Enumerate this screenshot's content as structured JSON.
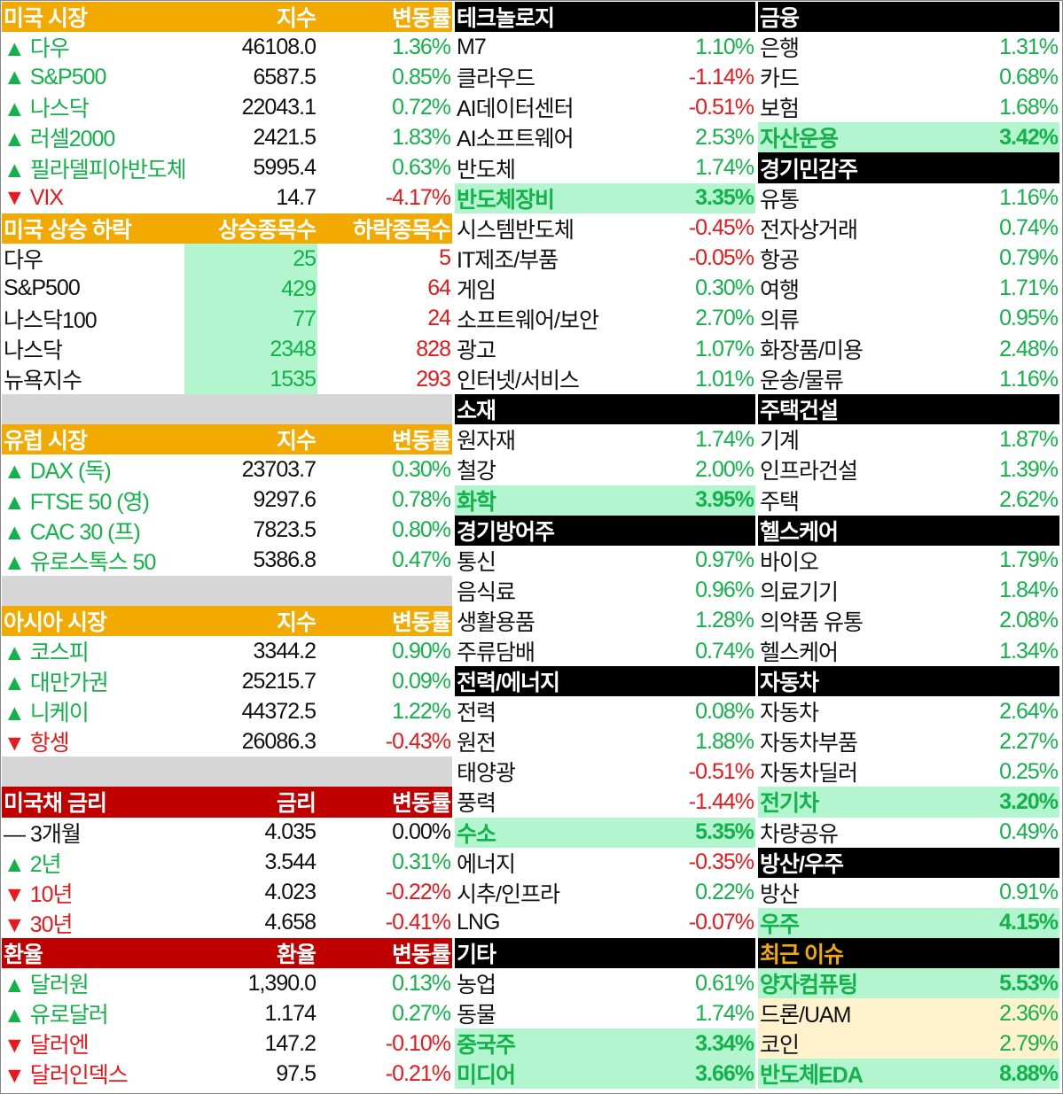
{
  "left": {
    "us_market": {
      "header": [
        "미국 시장",
        "지수",
        "변동률"
      ],
      "rows": [
        {
          "dir": "up",
          "name": "다우",
          "value": "46108.0",
          "chg": "1.36%"
        },
        {
          "dir": "up",
          "name": "S&P500",
          "value": "6587.5",
          "chg": "0.85%"
        },
        {
          "dir": "up",
          "name": "나스닥",
          "value": "22043.1",
          "chg": "0.72%"
        },
        {
          "dir": "up",
          "name": "러셀2000",
          "value": "2421.5",
          "chg": "1.83%"
        },
        {
          "dir": "up",
          "name": "필라델피아반도체",
          "value": "5995.4",
          "chg": "0.63%"
        },
        {
          "dir": "down",
          "name": "VIX",
          "value": "14.7",
          "chg": "-4.17%"
        }
      ]
    },
    "us_breadth": {
      "header": [
        "미국 상승 하락",
        "상승종목수",
        "하락종목수"
      ],
      "rows": [
        {
          "name": "다우",
          "up": "25",
          "down": "5"
        },
        {
          "name": "S&P500",
          "up": "429",
          "down": "64"
        },
        {
          "name": "나스닥100",
          "up": "77",
          "down": "24"
        },
        {
          "name": "나스닥",
          "up": "2348",
          "down": "828"
        },
        {
          "name": "뉴욕지수",
          "up": "1535",
          "down": "293"
        }
      ]
    },
    "europe": {
      "header": [
        "유럽 시장",
        "지수",
        "변동률"
      ],
      "rows": [
        {
          "dir": "up",
          "name": "DAX (독)",
          "value": "23703.7",
          "chg": "0.30%"
        },
        {
          "dir": "up",
          "name": "FTSE 50 (영)",
          "value": "9297.6",
          "chg": "0.78%"
        },
        {
          "dir": "up",
          "name": "CAC 30 (프)",
          "value": "7823.5",
          "chg": "0.80%"
        },
        {
          "dir": "up",
          "name": "유로스톡스 50",
          "value": "5386.8",
          "chg": "0.47%"
        }
      ]
    },
    "asia": {
      "header": [
        "아시아 시장",
        "지수",
        "변동률"
      ],
      "rows": [
        {
          "dir": "up",
          "name": "코스피",
          "value": "3344.2",
          "chg": "0.90%"
        },
        {
          "dir": "up",
          "name": "대만가권",
          "value": "25215.7",
          "chg": "0.09%"
        },
        {
          "dir": "up",
          "name": "니케이",
          "value": "44372.5",
          "chg": "1.22%"
        },
        {
          "dir": "down",
          "name": "항셍",
          "value": "26086.3",
          "chg": "-0.43%"
        }
      ]
    },
    "treasury": {
      "header": [
        "미국채 금리",
        "금리",
        "변동률"
      ],
      "rows": [
        {
          "dir": "flat",
          "name": "3개월",
          "value": "4.035",
          "chg": "0.00%"
        },
        {
          "dir": "up",
          "name": "2년",
          "value": "3.544",
          "chg": "0.31%"
        },
        {
          "dir": "down",
          "name": "10년",
          "value": "4.023",
          "chg": "-0.22%"
        },
        {
          "dir": "down",
          "name": "30년",
          "value": "4.658",
          "chg": "-0.41%"
        }
      ]
    },
    "fx": {
      "header": [
        "환율",
        "환율",
        "변동률"
      ],
      "rows": [
        {
          "dir": "up",
          "name": "달러원",
          "value": "1,390.0",
          "chg": "0.13%"
        },
        {
          "dir": "up",
          "name": "유로달러",
          "value": "1.174",
          "chg": "0.27%"
        },
        {
          "dir": "down",
          "name": "달러엔",
          "value": "147.2",
          "chg": "-0.10%"
        },
        {
          "dir": "down",
          "name": "달러인덱스",
          "value": "97.5",
          "chg": "-0.21%"
        }
      ]
    }
  },
  "middle": [
    {
      "header": "테크놀로지",
      "rows": [
        {
          "name": "M7",
          "chg": "1.10%",
          "dir": "up"
        },
        {
          "name": "클라우드",
          "chg": "-1.14%",
          "dir": "down"
        },
        {
          "name": "AI데이터센터",
          "chg": "-0.51%",
          "dir": "down"
        },
        {
          "name": "AI소프트웨어",
          "chg": "2.53%",
          "dir": "up"
        },
        {
          "name": "반도체",
          "chg": "1.74%",
          "dir": "up"
        },
        {
          "name": "반도체장비",
          "chg": "3.35%",
          "dir": "up",
          "hl": "green"
        },
        {
          "name": "시스템반도체",
          "chg": "-0.45%",
          "dir": "down"
        },
        {
          "name": "IT제조/부품",
          "chg": "-0.05%",
          "dir": "down"
        },
        {
          "name": "게임",
          "chg": "0.30%",
          "dir": "up"
        },
        {
          "name": "소프트웨어/보안",
          "chg": "2.70%",
          "dir": "up"
        },
        {
          "name": "광고",
          "chg": "1.07%",
          "dir": "up"
        },
        {
          "name": "인터넷/서비스",
          "chg": "1.01%",
          "dir": "up"
        }
      ]
    },
    {
      "header": "소재",
      "rows": [
        {
          "name": "원자재",
          "chg": "1.74%",
          "dir": "up"
        },
        {
          "name": "철강",
          "chg": "2.00%",
          "dir": "up"
        },
        {
          "name": "화학",
          "chg": "3.95%",
          "dir": "up",
          "hl": "green"
        }
      ]
    },
    {
      "header": "경기방어주",
      "rows": [
        {
          "name": "통신",
          "chg": "0.97%",
          "dir": "up"
        },
        {
          "name": "음식료",
          "chg": "0.96%",
          "dir": "up"
        },
        {
          "name": "생활용품",
          "chg": "1.28%",
          "dir": "up"
        },
        {
          "name": "주류담배",
          "chg": "0.74%",
          "dir": "up"
        }
      ]
    },
    {
      "header": "전력/에너지",
      "rows": [
        {
          "name": "전력",
          "chg": "0.08%",
          "dir": "up"
        },
        {
          "name": "원전",
          "chg": "1.88%",
          "dir": "up"
        },
        {
          "name": "태양광",
          "chg": "-0.51%",
          "dir": "down"
        },
        {
          "name": "풍력",
          "chg": "-1.44%",
          "dir": "down"
        },
        {
          "name": "수소",
          "chg": "5.35%",
          "dir": "up",
          "hl": "green"
        },
        {
          "name": "에너지",
          "chg": "-0.35%",
          "dir": "down"
        },
        {
          "name": "시추/인프라",
          "chg": "0.22%",
          "dir": "up"
        },
        {
          "name": "LNG",
          "chg": "-0.07%",
          "dir": "down"
        }
      ]
    },
    {
      "header": "기타",
      "rows": [
        {
          "name": "농업",
          "chg": "0.61%",
          "dir": "up"
        },
        {
          "name": "동물",
          "chg": "1.74%",
          "dir": "up"
        },
        {
          "name": "중국주",
          "chg": "3.34%",
          "dir": "up",
          "hl": "green"
        },
        {
          "name": "미디어",
          "chg": "3.66%",
          "dir": "up",
          "hl": "green"
        }
      ]
    }
  ],
  "right": [
    {
      "header": "금융",
      "rows": [
        {
          "name": "은행",
          "chg": "1.31%",
          "dir": "up"
        },
        {
          "name": "카드",
          "chg": "0.68%",
          "dir": "up"
        },
        {
          "name": "보험",
          "chg": "1.68%",
          "dir": "up"
        },
        {
          "name": "자산운용",
          "chg": "3.42%",
          "dir": "up",
          "hl": "green"
        }
      ]
    },
    {
      "header": "경기민감주",
      "rows": [
        {
          "name": "유통",
          "chg": "1.16%",
          "dir": "up"
        },
        {
          "name": "전자상거래",
          "chg": "0.74%",
          "dir": "up"
        },
        {
          "name": "항공",
          "chg": "0.79%",
          "dir": "up"
        },
        {
          "name": "여행",
          "chg": "1.71%",
          "dir": "up"
        },
        {
          "name": "의류",
          "chg": "0.95%",
          "dir": "up"
        },
        {
          "name": "화장품/미용",
          "chg": "2.48%",
          "dir": "up"
        },
        {
          "name": "운송/물류",
          "chg": "1.16%",
          "dir": "up"
        }
      ]
    },
    {
      "header": "주택건설",
      "rows": [
        {
          "name": "기계",
          "chg": "1.87%",
          "dir": "up"
        },
        {
          "name": "인프라건설",
          "chg": "1.39%",
          "dir": "up"
        },
        {
          "name": "주택",
          "chg": "2.62%",
          "dir": "up"
        }
      ]
    },
    {
      "header": "헬스케어",
      "rows": [
        {
          "name": "바이오",
          "chg": "1.79%",
          "dir": "up"
        },
        {
          "name": "의료기기",
          "chg": "1.84%",
          "dir": "up"
        },
        {
          "name": "의약품 유통",
          "chg": "2.08%",
          "dir": "up"
        },
        {
          "name": "헬스케어",
          "chg": "1.34%",
          "dir": "up"
        }
      ]
    },
    {
      "header": "자동차",
      "rows": [
        {
          "name": "자동차",
          "chg": "2.64%",
          "dir": "up"
        },
        {
          "name": "자동차부품",
          "chg": "2.27%",
          "dir": "up"
        },
        {
          "name": "자동차딜러",
          "chg": "0.25%",
          "dir": "up"
        },
        {
          "name": "전기차",
          "chg": "3.20%",
          "dir": "up",
          "hl": "green"
        },
        {
          "name": "차량공유",
          "chg": "0.49%",
          "dir": "up"
        }
      ]
    },
    {
      "header": "방산/우주",
      "rows": [
        {
          "name": "방산",
          "chg": "0.91%",
          "dir": "up"
        },
        {
          "name": "우주",
          "chg": "4.15%",
          "dir": "up",
          "hl": "green"
        }
      ]
    },
    {
      "header": "최근 이슈",
      "header_color": "orange",
      "rows": [
        {
          "name": "양자컴퓨팅",
          "chg": "5.53%",
          "dir": "up",
          "hl": "green"
        },
        {
          "name": "드론/UAM",
          "chg": "2.36%",
          "dir": "up",
          "hl": "cream"
        },
        {
          "name": "코인",
          "chg": "2.79%",
          "dir": "up",
          "hl": "cream"
        },
        {
          "name": "반도체EDA",
          "chg": "8.88%",
          "dir": "up",
          "hl": "green"
        }
      ]
    }
  ],
  "colors": {
    "up": "#13b24a",
    "down": "#e8191c",
    "header_orange": "#f2a900",
    "header_red": "#c00000",
    "highlight_green": "#b3f5cf",
    "highlight_cream": "#fff2cc"
  },
  "icons": {
    "up": "up-triangle-icon",
    "down": "down-triangle-icon",
    "flat": "dash-icon"
  }
}
